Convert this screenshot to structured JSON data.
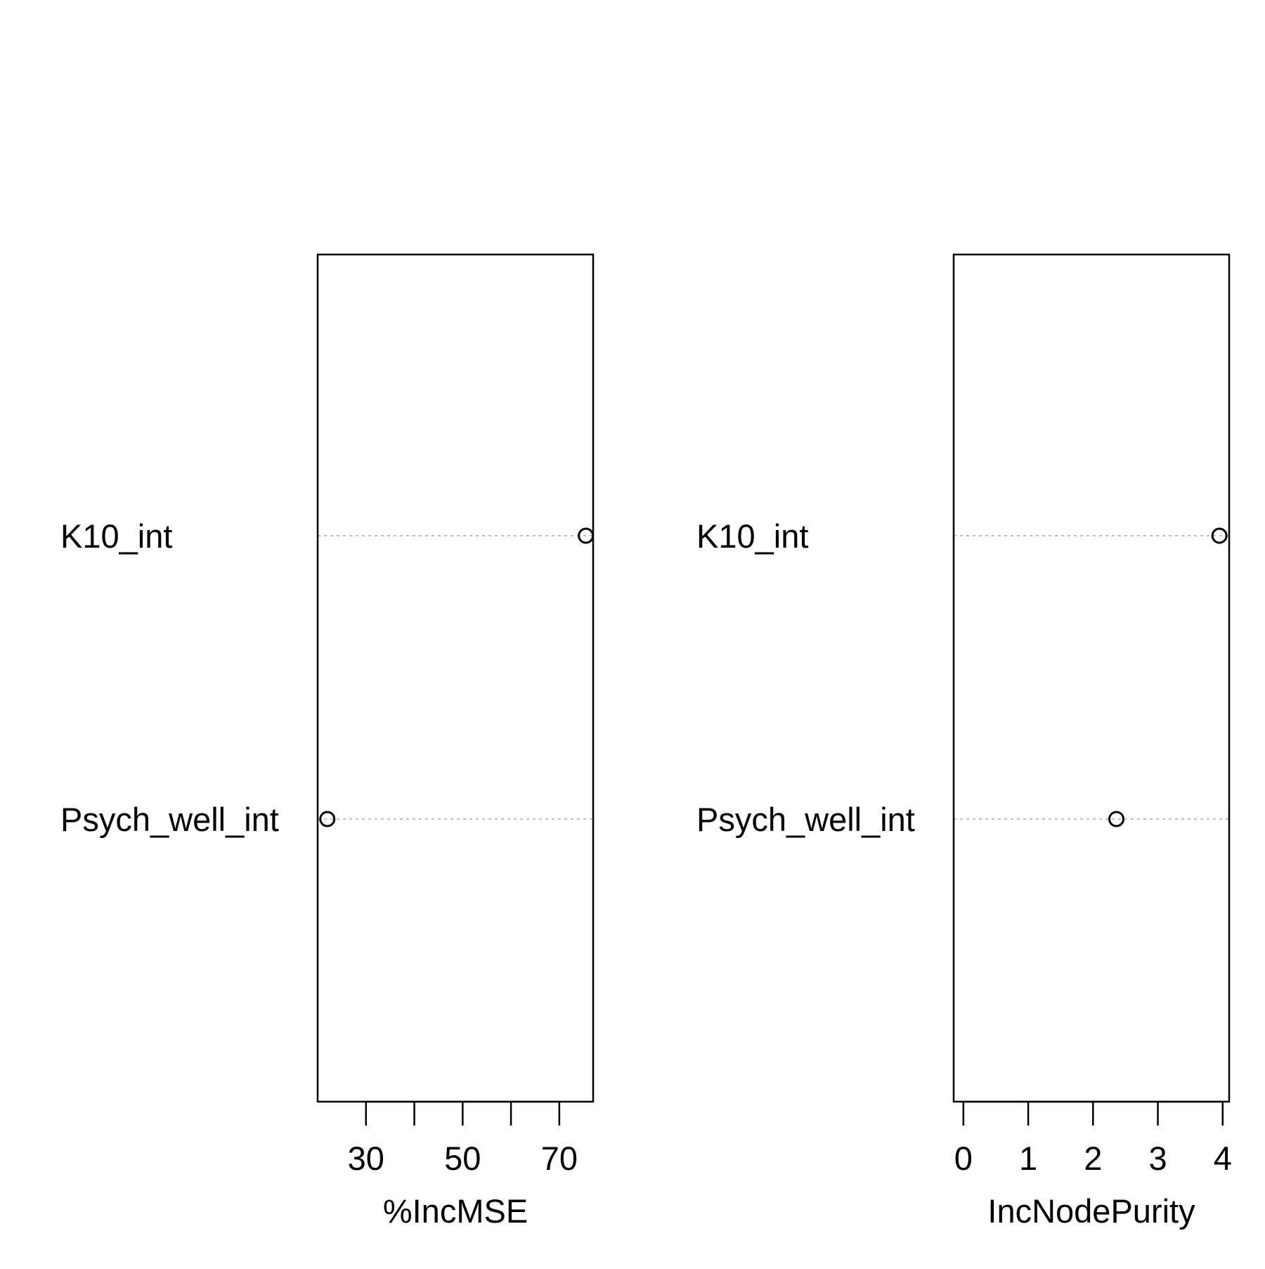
{
  "chart_data": [
    {
      "type": "scatter",
      "subtype": "dotchart",
      "title": "",
      "xlabel": "%IncMSE",
      "ylabel": "",
      "xticks": [
        30,
        40,
        50,
        60,
        70
      ],
      "xtick_labels": [
        "30",
        "",
        "50",
        "",
        "70"
      ],
      "xlim": [
        20,
        77
      ],
      "categories": [
        "K10_int",
        "Psych_well_int"
      ],
      "values": [
        75.5,
        22
      ],
      "grid": "dotted horizontal guide per variable",
      "marker": "open circle"
    },
    {
      "type": "scatter",
      "subtype": "dotchart",
      "title": "",
      "xlabel": "IncNodePurity",
      "ylabel": "",
      "xticks": [
        0,
        1,
        2,
        3,
        4
      ],
      "xtick_labels": [
        "0",
        "1",
        "2",
        "3",
        "4"
      ],
      "xlim": [
        -0.15,
        4.1
      ],
      "categories": [
        "K10_int",
        "Psych_well_int"
      ],
      "values": [
        3.95,
        2.36
      ],
      "grid": "dotted horizontal guide per variable",
      "marker": "open circle"
    }
  ],
  "colors": {
    "axis": "#000000",
    "guide": "#bebebe",
    "marker": "#000000",
    "background": "#ffffff"
  }
}
